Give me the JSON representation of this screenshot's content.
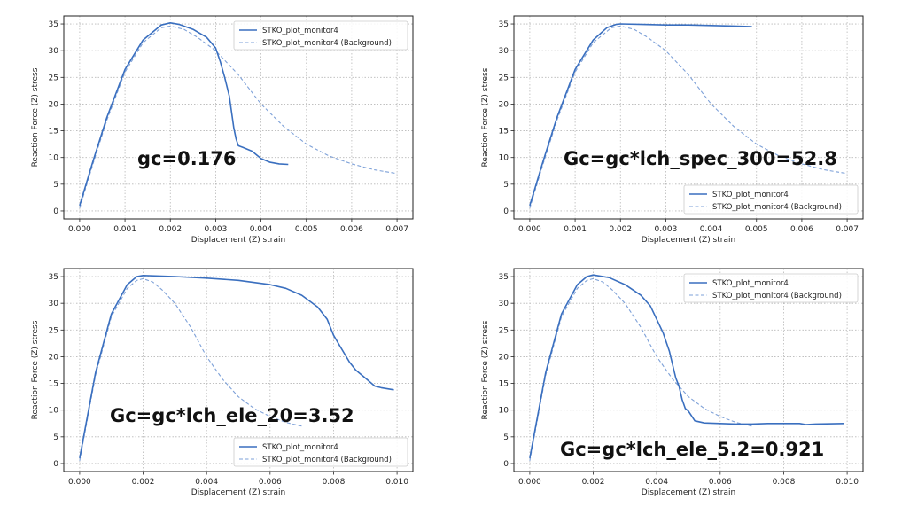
{
  "chart_data": [
    {
      "type": "line",
      "xlabel": "Displacement (Z) strain",
      "ylabel": "Reaction Force (Z) stress",
      "xlim": [
        -0.00035,
        0.00735
      ],
      "ylim": [
        -1.5,
        36.5
      ],
      "xticks": [
        0,
        0.001,
        0.002,
        0.003,
        0.004,
        0.005,
        0.006,
        0.007
      ],
      "xtick_labels": [
        "0.000",
        "0.001",
        "0.002",
        "0.003",
        "0.004",
        "0.005",
        "0.006",
        "0.007"
      ],
      "yticks": [
        0,
        5,
        10,
        15,
        20,
        25,
        30,
        35
      ],
      "ytick_labels": [
        "0",
        "5",
        "10",
        "15",
        "20",
        "25",
        "30",
        "35"
      ],
      "grid": true,
      "legend_position": "top-right",
      "annotation": "gc=0.176",
      "series": [
        {
          "name": "STKO_plot_monitor4",
          "color": "#3a6fbf",
          "style": "solid",
          "x": [
            0,
            0.0003,
            0.0006,
            0.001,
            0.0014,
            0.0018,
            0.002,
            0.0022,
            0.0025,
            0.0028,
            0.003,
            0.0031,
            0.0032,
            0.0033,
            0.0034,
            0.00345,
            0.0035,
            0.0036,
            0.0038,
            0.004,
            0.0042,
            0.0044,
            0.0046
          ],
          "y": [
            1,
            9.5,
            17.5,
            26.5,
            32,
            34.8,
            35.2,
            34.9,
            34,
            32.5,
            30.5,
            28,
            25,
            21.5,
            15.5,
            13.5,
            12.2,
            11.9,
            11.2,
            9.8,
            9.1,
            8.8,
            8.7
          ]
        },
        {
          "name": "STKO_plot_monitor4 (Background)",
          "color": "#7ea1d8",
          "style": "dashed",
          "x": [
            0,
            0.0003,
            0.0006,
            0.001,
            0.0014,
            0.0018,
            0.002,
            0.0023,
            0.0026,
            0.003,
            0.0035,
            0.004,
            0.0045,
            0.005,
            0.0055,
            0.006,
            0.0065,
            0.007
          ],
          "y": [
            0.5,
            9,
            17,
            26,
            31.5,
            34.3,
            34.6,
            34,
            32.5,
            30,
            25.5,
            20,
            15.8,
            12.5,
            10.3,
            8.8,
            7.7,
            7
          ]
        }
      ]
    },
    {
      "type": "line",
      "xlabel": "Displacement (Z) strain",
      "ylabel": "Reaction Force (Z) stress",
      "xlim": [
        -0.00035,
        0.00735
      ],
      "ylim": [
        -1.5,
        36.5
      ],
      "xticks": [
        0,
        0.001,
        0.002,
        0.003,
        0.004,
        0.005,
        0.006,
        0.007
      ],
      "xtick_labels": [
        "0.000",
        "0.001",
        "0.002",
        "0.003",
        "0.004",
        "0.005",
        "0.006",
        "0.007"
      ],
      "yticks": [
        0,
        5,
        10,
        15,
        20,
        25,
        30,
        35
      ],
      "ytick_labels": [
        "0",
        "5",
        "10",
        "15",
        "20",
        "25",
        "30",
        "35"
      ],
      "grid": true,
      "legend_position": "bottom-right",
      "annotation": "Gc=gc*lch_spec_300=52.8",
      "series": [
        {
          "name": "STKO_plot_monitor4",
          "color": "#3a6fbf",
          "style": "solid",
          "x": [
            0,
            0.0003,
            0.0006,
            0.001,
            0.0014,
            0.0017,
            0.0019,
            0.002,
            0.0025,
            0.003,
            0.0035,
            0.004,
            0.0045,
            0.0049
          ],
          "y": [
            1,
            9.5,
            17.5,
            26.5,
            32,
            34.3,
            34.9,
            35,
            34.9,
            34.8,
            34.8,
            34.7,
            34.6,
            34.5
          ]
        },
        {
          "name": "STKO_plot_monitor4 (Background)",
          "color": "#7ea1d8",
          "style": "dashed",
          "x": [
            0,
            0.0003,
            0.0006,
            0.001,
            0.0014,
            0.0018,
            0.002,
            0.0023,
            0.0026,
            0.003,
            0.0035,
            0.004,
            0.0045,
            0.005,
            0.0055,
            0.006,
            0.0065,
            0.007
          ],
          "y": [
            0.5,
            9,
            17,
            26,
            31.5,
            34.3,
            34.6,
            34,
            32.5,
            30,
            25.5,
            20,
            15.8,
            12.5,
            10.3,
            8.8,
            7.7,
            7
          ]
        }
      ]
    },
    {
      "type": "line",
      "xlabel": "Displacement (Z) strain",
      "ylabel": "Reaction Force (Z) stress",
      "xlim": [
        -0.0005,
        0.0105
      ],
      "ylim": [
        -1.5,
        36.5
      ],
      "xticks": [
        0,
        0.002,
        0.004,
        0.006,
        0.008,
        0.01
      ],
      "xtick_labels": [
        "0.000",
        "0.002",
        "0.004",
        "0.006",
        "0.008",
        "0.010"
      ],
      "yticks": [
        0,
        5,
        10,
        15,
        20,
        25,
        30,
        35
      ],
      "ytick_labels": [
        "0",
        "5",
        "10",
        "15",
        "20",
        "25",
        "30",
        "35"
      ],
      "grid": true,
      "legend_position": "bottom-right",
      "annotation": "Gc=gc*lch_ele_20=3.52",
      "series": [
        {
          "name": "STKO_plot_monitor4",
          "color": "#3a6fbf",
          "style": "solid",
          "x": [
            0,
            0.0005,
            0.001,
            0.0015,
            0.0018,
            0.002,
            0.003,
            0.004,
            0.005,
            0.006,
            0.0065,
            0.007,
            0.0075,
            0.0078,
            0.008,
            0.0082,
            0.0085,
            0.0087,
            0.009,
            0.0093,
            0.0095,
            0.0099
          ],
          "y": [
            1,
            17,
            28,
            33.5,
            35,
            35.2,
            35,
            34.7,
            34.3,
            33.5,
            32.8,
            31.5,
            29.3,
            27,
            24,
            22,
            19,
            17.5,
            16,
            14.5,
            14.2,
            13.8
          ]
        },
        {
          "name": "STKO_plot_monitor4 (Background)",
          "color": "#7ea1d8",
          "style": "dashed",
          "x": [
            0,
            0.0005,
            0.001,
            0.0015,
            0.0018,
            0.002,
            0.0023,
            0.0026,
            0.003,
            0.0035,
            0.004,
            0.0045,
            0.005,
            0.0055,
            0.006,
            0.0065,
            0.007
          ],
          "y": [
            0.5,
            16.5,
            27.5,
            32.8,
            34.3,
            34.6,
            34,
            32.5,
            30,
            25.5,
            20,
            15.8,
            12.5,
            10.3,
            8.8,
            7.7,
            7
          ]
        }
      ]
    },
    {
      "type": "line",
      "xlabel": "Displacement (Z) strain",
      "ylabel": "Reaction Force (Z) stress",
      "xlim": [
        -0.0005,
        0.0105
      ],
      "ylim": [
        -1.5,
        36.5
      ],
      "xticks": [
        0,
        0.002,
        0.004,
        0.006,
        0.008,
        0.01
      ],
      "xtick_labels": [
        "0.000",
        "0.002",
        "0.004",
        "0.006",
        "0.008",
        "0.010"
      ],
      "yticks": [
        0,
        5,
        10,
        15,
        20,
        25,
        30,
        35
      ],
      "ytick_labels": [
        "0",
        "5",
        "10",
        "15",
        "20",
        "25",
        "30",
        "35"
      ],
      "grid": true,
      "legend_position": "top-right",
      "annotation": "Gc=gc*lch_ele_5.2=0.921",
      "series": [
        {
          "name": "STKO_plot_monitor4",
          "color": "#3a6fbf",
          "style": "solid",
          "x": [
            0,
            0.0005,
            0.001,
            0.0015,
            0.0018,
            0.002,
            0.0025,
            0.003,
            0.0035,
            0.0038,
            0.004,
            0.0042,
            0.0044,
            0.0045,
            0.0046,
            0.0047,
            0.0048,
            0.0049,
            0.005,
            0.0052,
            0.0055,
            0.006,
            0.0065,
            0.007,
            0.0075,
            0.008,
            0.0085,
            0.0087,
            0.009,
            0.0099
          ],
          "y": [
            1,
            17,
            28,
            33.5,
            35,
            35.3,
            34.8,
            33.5,
            31.5,
            29.5,
            27,
            24.5,
            21,
            18.5,
            16,
            14.5,
            12,
            10.3,
            9.8,
            8,
            7.6,
            7.5,
            7.4,
            7.4,
            7.5,
            7.5,
            7.5,
            7.3,
            7.4,
            7.5
          ]
        },
        {
          "name": "STKO_plot_monitor4 (Background)",
          "color": "#7ea1d8",
          "style": "dashed",
          "x": [
            0,
            0.0005,
            0.001,
            0.0015,
            0.0018,
            0.002,
            0.0023,
            0.0026,
            0.003,
            0.0035,
            0.004,
            0.0045,
            0.005,
            0.0055,
            0.006,
            0.0065,
            0.007
          ],
          "y": [
            0.5,
            16.5,
            27.5,
            32.8,
            34.3,
            34.6,
            34,
            32.5,
            30,
            25.5,
            20,
            15.8,
            12.5,
            10.3,
            8.8,
            7.7,
            7
          ]
        }
      ]
    }
  ]
}
